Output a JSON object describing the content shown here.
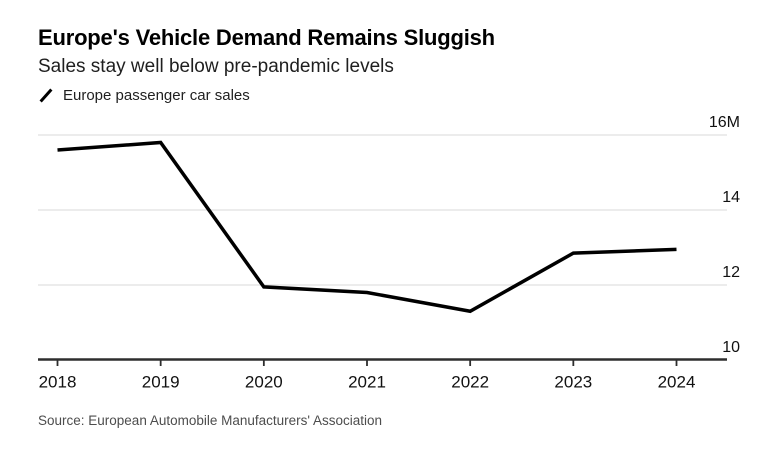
{
  "header": {
    "title": "Europe's Vehicle Demand Remains Sluggish",
    "subtitle": "Sales stay well below pre-pandemic levels"
  },
  "legend": {
    "marker_icon": "line-swatch-icon",
    "label": "Europe passenger car sales"
  },
  "source_text": "Source: European Automobile Manufacturers' Association",
  "colors": {
    "line": "#000000",
    "gridline": "#d9d9d9",
    "axis": "#2e2e2e",
    "tick_label": "#111111",
    "title": "#000000",
    "subtitle": "#1f1f1f",
    "source": "#4d4d4d",
    "background": "#ffffff"
  },
  "chart_data": {
    "type": "line",
    "title": "Europe's Vehicle Demand Remains Sluggish",
    "subtitle": "Sales stay well below pre-pandemic levels",
    "source": "Source: European Automobile Manufacturers' Association",
    "unit": "M",
    "categories": [
      "2018",
      "2019",
      "2020",
      "2021",
      "2022",
      "2023",
      "2024"
    ],
    "series": [
      {
        "name": "Europe passenger car sales",
        "values": [
          15.6,
          15.8,
          11.95,
          11.8,
          11.3,
          12.85,
          12.95
        ]
      }
    ],
    "ylim": [
      10,
      16
    ],
    "y_ticks": [
      {
        "value": 16,
        "label": "16M"
      },
      {
        "value": 14,
        "label": "14"
      },
      {
        "value": 12,
        "label": "12"
      },
      {
        "value": 10,
        "label": "10"
      }
    ],
    "grid": "horizontal",
    "legend_position": "top-left",
    "y_axis_side": "right"
  }
}
